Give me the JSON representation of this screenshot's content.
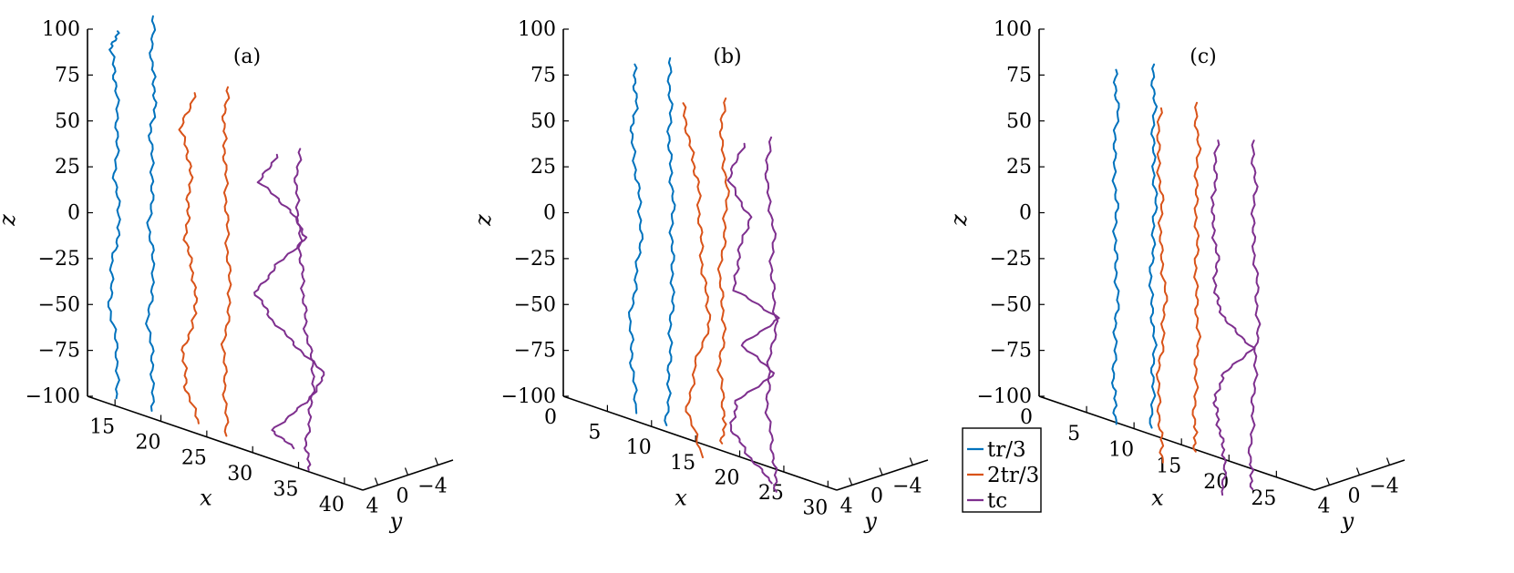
{
  "colors": {
    "blue": "#0072BD",
    "orange": "#D95319",
    "purple": "#7E2F8E"
  },
  "chart_data": [
    {
      "type": "line",
      "panel": "(a)",
      "zlabel": "z",
      "xlabel": "x",
      "ylabel": "y",
      "z_ticks": [
        "100",
        "75",
        "50",
        "25",
        "0",
        "-25",
        "-50",
        "-75",
        "-100"
      ],
      "x_ticks": [
        "15",
        "20",
        "25",
        "30",
        "35",
        "40"
      ],
      "y_ticks": [
        "4",
        "0",
        "-4"
      ],
      "zlim": [
        -100,
        100
      ],
      "xlim": [
        12,
        42
      ],
      "ylim": [
        6,
        -6
      ],
      "series": [
        {
          "legend": "tr/3",
          "color": "blue",
          "x": 15,
          "y": 0,
          "z": [
            100,
            90,
            70,
            45,
            20,
            -5,
            -25,
            -50,
            -75,
            -100
          ],
          "w": [
            0.2,
            -0.3,
            0.1,
            0.2,
            0.0,
            0.4,
            -0.2,
            -0.4,
            0.2,
            0.1
          ]
        },
        {
          "legend": "tr/3",
          "color": "blue",
          "x": 19,
          "y": 0,
          "z": [
            115,
            90,
            70,
            50,
            25,
            0,
            -25,
            -50,
            -75,
            -100
          ],
          "w": [
            0.1,
            0.0,
            0.3,
            -0.1,
            0.1,
            -0.2,
            0.2,
            -0.3,
            0.1,
            0.0
          ]
        },
        {
          "legend": "2tr/3",
          "color": "orange",
          "x": 23,
          "y": 0,
          "z": [
            80,
            60,
            40,
            20,
            0,
            -20,
            -40,
            -60,
            -80,
            -100
          ],
          "w": [
            0.5,
            -0.6,
            0.2,
            0.0,
            -0.2,
            0.4,
            0.6,
            -0.4,
            -0.2,
            0.8
          ]
        },
        {
          "legend": "2tr/3",
          "color": "orange",
          "x": 27,
          "y": 0,
          "z": [
            90,
            70,
            50,
            25,
            0,
            -25,
            -50,
            -75,
            -100
          ],
          "w": [
            0.2,
            -0.1,
            0.0,
            0.1,
            0.2,
            0.4,
            -0.1,
            0.0,
            0.1
          ]
        },
        {
          "legend": "tc",
          "color": "purple",
          "x": 31,
          "y": 0,
          "z": [
            60,
            45,
            30,
            15,
            0,
            -15,
            -30,
            -45,
            -60,
            -75,
            -90,
            -100
          ],
          "w": [
            1.2,
            -0.2,
            2.2,
            3.5,
            1.2,
            -0.5,
            0.8,
            2.8,
            5.0,
            3.5,
            0.8,
            2.5
          ]
        },
        {
          "legend": "tc",
          "color": "purple",
          "x": 35,
          "y": 0,
          "z": [
            70,
            50,
            30,
            10,
            -10,
            -30,
            -50,
            -70,
            -90,
            -105
          ],
          "w": [
            0.1,
            -0.2,
            0.0,
            0.2,
            0.4,
            0.6,
            1.2,
            1.0,
            0.6,
            0.8
          ]
        }
      ]
    },
    {
      "type": "line",
      "panel": "(b)",
      "zlabel": "z",
      "xlabel": "x",
      "ylabel": "y",
      "z_ticks": [
        "100",
        "75",
        "50",
        "25",
        "0",
        "-25",
        "-50",
        "-75",
        "-100"
      ],
      "x_ticks": [
        "0",
        "5",
        "10",
        "15",
        "20",
        "25",
        "30"
      ],
      "y_ticks": [
        "4",
        "0",
        "-4"
      ],
      "zlim": [
        -100,
        100
      ],
      "xlim": [
        0,
        31
      ],
      "ylim": [
        6,
        -6
      ],
      "series": [
        {
          "legend": "tr/3",
          "color": "blue",
          "x": 8,
          "y": 0,
          "z": [
            90,
            70,
            50,
            25,
            0,
            -25,
            -50,
            -75,
            -100
          ],
          "w": [
            0.0,
            0.2,
            -0.2,
            0.3,
            0.6,
            0.2,
            -0.3,
            -0.1,
            0.2
          ]
        },
        {
          "legend": "tr/3",
          "color": "blue",
          "x": 12,
          "y": 0,
          "z": [
            100,
            75,
            50,
            25,
            0,
            -25,
            -50,
            -75,
            -100
          ],
          "w": [
            0.0,
            0.1,
            0.0,
            0.3,
            0.2,
            0.3,
            0.1,
            0.0,
            -0.2
          ]
        },
        {
          "legend": "2tr/3",
          "color": "orange",
          "x": 13.5,
          "y": 0,
          "z": [
            78,
            55,
            35,
            10,
            -15,
            -40,
            -65,
            -90,
            -115
          ],
          "w": [
            0.0,
            0.6,
            1.2,
            1.4,
            1.6,
            2.2,
            1.0,
            0.4,
            1.6
          ]
        },
        {
          "legend": "2tr/3",
          "color": "orange",
          "x": 18,
          "y": 0,
          "z": [
            88,
            65,
            40,
            15,
            -10,
            -35,
            -60,
            -85,
            -100
          ],
          "w": [
            0.2,
            -0.1,
            0.4,
            0.2,
            -0.2,
            0.2,
            -0.2,
            0.2,
            0.0
          ]
        },
        {
          "legend": "tc",
          "color": "purple",
          "x": 19,
          "y": 0,
          "z": [
            65,
            45,
            25,
            5,
            -15,
            -30,
            -45,
            -60,
            -75,
            -90,
            -105,
            -120
          ],
          "w": [
            1.0,
            -0.2,
            1.5,
            0.6,
            0.3,
            3.8,
            0.8,
            3.5,
            0.5,
            0.0,
            1.4,
            3.2
          ]
        },
        {
          "legend": "tc",
          "color": "purple",
          "x": 23,
          "y": 0,
          "z": [
            75,
            50,
            25,
            0,
            -25,
            -50,
            -75,
            -100,
            -118
          ],
          "w": [
            0.3,
            0.0,
            0.6,
            0.4,
            0.8,
            0.2,
            0.1,
            0.6,
            0.8
          ]
        }
      ]
    },
    {
      "type": "line",
      "panel": "(c)",
      "zlabel": "z",
      "xlabel": "x",
      "ylabel": "y",
      "z_ticks": [
        "100",
        "75",
        "50",
        "25",
        "0",
        "-25",
        "-50",
        "-75",
        "-100"
      ],
      "x_ticks": [
        "0",
        "5",
        "10",
        "15",
        "20",
        "25"
      ],
      "y_ticks": [
        "4",
        "0",
        "-4"
      ],
      "zlim": [
        -100,
        100
      ],
      "xlim": [
        0,
        29
      ],
      "ylim": [
        6,
        -6
      ],
      "series": [
        {
          "legend": "tr/3",
          "color": "blue",
          "x": 8,
          "y": 0,
          "z": [
            88,
            65,
            40,
            15,
            -10,
            -35,
            -60,
            -85,
            -105
          ],
          "w": [
            0.0,
            0.2,
            -0.1,
            0.1,
            0.0,
            0.2,
            0.0,
            -0.1,
            0.1
          ]
        },
        {
          "legend": "tr/3",
          "color": "blue",
          "x": 12,
          "y": 0,
          "z": [
            98,
            75,
            50,
            25,
            0,
            -25,
            -50,
            -75,
            -100
          ],
          "w": [
            0.0,
            0.1,
            0.0,
            0.2,
            0.0,
            -0.2,
            0.1,
            0.0,
            -0.1
          ]
        },
        {
          "legend": "2tr/3",
          "color": "orange",
          "x": 12.5,
          "y": 0,
          "z": [
            75,
            50,
            25,
            0,
            -25,
            -50,
            -75,
            -100,
            -118
          ],
          "w": [
            0.2,
            0.0,
            0.3,
            0.2,
            0.6,
            0.4,
            0.0,
            0.2,
            0.4
          ]
        },
        {
          "legend": "2tr/3",
          "color": "orange",
          "x": 16.5,
          "y": 0,
          "z": [
            85,
            60,
            35,
            10,
            -15,
            -40,
            -65,
            -90,
            -105
          ],
          "w": [
            0.0,
            0.2,
            0.0,
            0.1,
            0.0,
            0.2,
            0.0,
            -0.1,
            0.0
          ]
        },
        {
          "legend": "tc",
          "color": "purple",
          "x": 18.5,
          "y": 0,
          "z": [
            68,
            45,
            25,
            5,
            -15,
            -30,
            -45,
            -60,
            -75,
            -90,
            -105,
            -125
          ],
          "w": [
            0.2,
            0.0,
            -0.2,
            0.2,
            0.0,
            0.8,
            3.0,
            0.6,
            0.0,
            0.4,
            0.8,
            0.6
          ]
        },
        {
          "legend": "tc",
          "color": "purple",
          "x": 22.5,
          "y": 0,
          "z": [
            75,
            50,
            25,
            0,
            -25,
            -50,
            -75,
            -100,
            -115
          ],
          "w": [
            0.0,
            0.2,
            0.0,
            0.3,
            0.4,
            0.2,
            0.0,
            -0.2,
            0.0
          ]
        }
      ]
    }
  ],
  "legend": {
    "entries": [
      {
        "text": "tr/3",
        "color": "blue"
      },
      {
        "text": "2tr/3",
        "color": "orange"
      },
      {
        "text": "tc",
        "color": "purple"
      }
    ]
  }
}
